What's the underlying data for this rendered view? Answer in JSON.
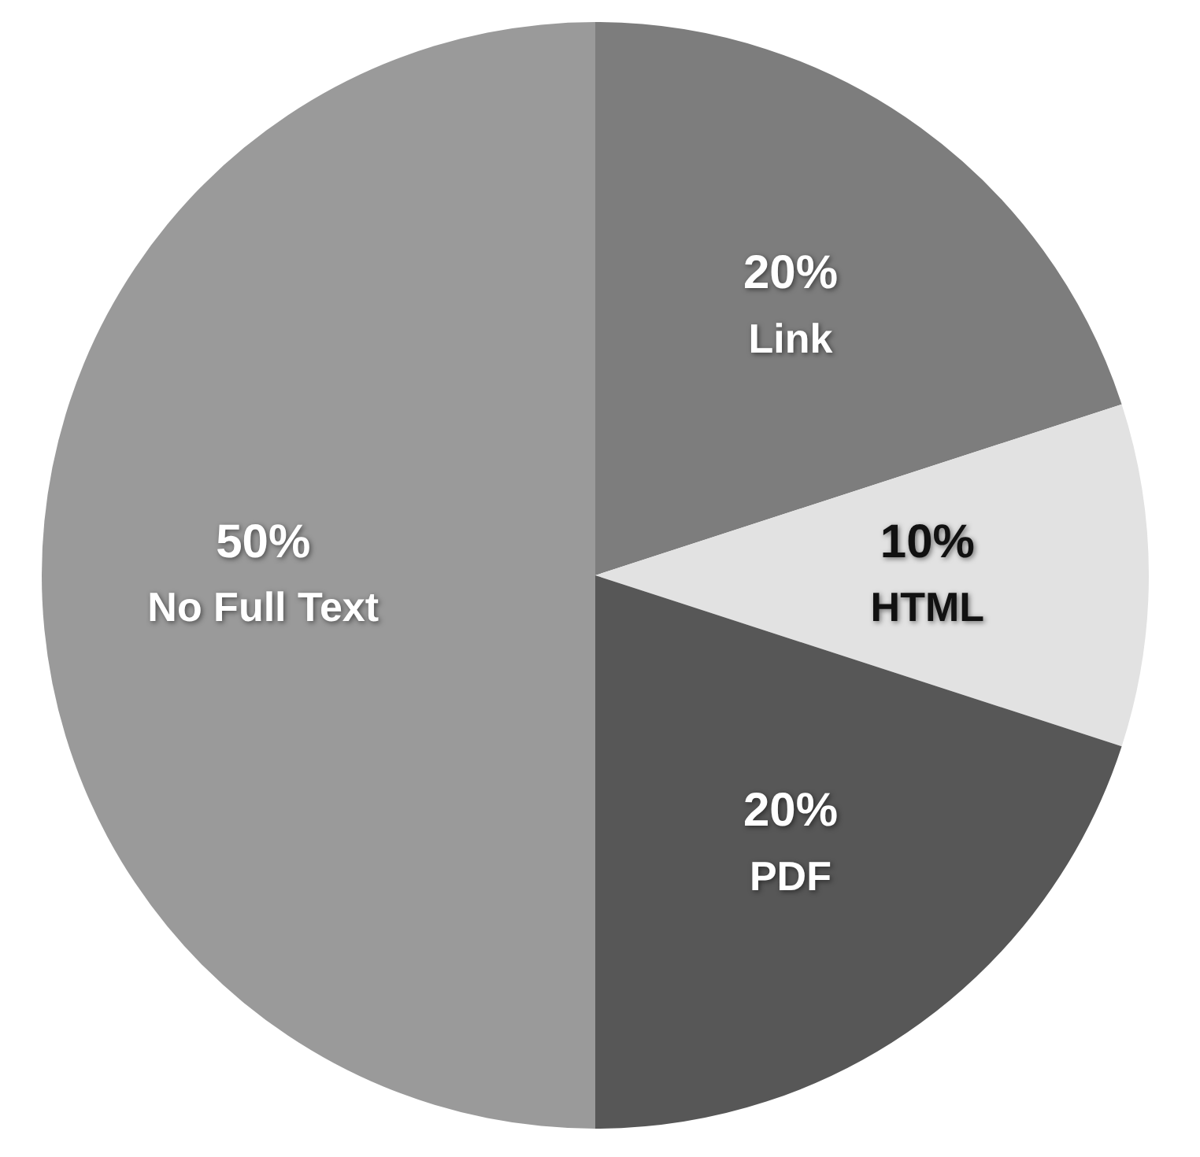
{
  "chart_data": {
    "type": "pie",
    "categories": [
      "Link",
      "HTML",
      "PDF",
      "No Full Text"
    ],
    "values": [
      20,
      10,
      20,
      50
    ],
    "colors": [
      "#7d7d7d",
      "#e2e2e2",
      "#575757",
      "#9a9a9a"
    ],
    "value_labels": [
      "20%",
      "10%",
      "20%",
      "50%"
    ],
    "legend": false
  }
}
